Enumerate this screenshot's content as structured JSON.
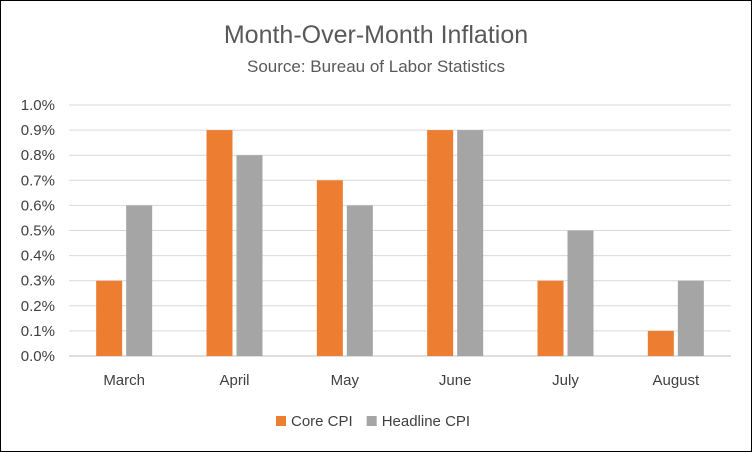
{
  "chart_data": {
    "type": "bar",
    "title": "Month-Over-Month Inflation",
    "subtitle": "Source: Bureau of Labor Statistics",
    "categories": [
      "March",
      "April",
      "May",
      "June",
      "July",
      "August"
    ],
    "series": [
      {
        "name": "Core CPI",
        "color": "#ED7D31",
        "values": [
          0.3,
          0.9,
          0.7,
          0.9,
          0.3,
          0.1
        ]
      },
      {
        "name": "Headline CPI",
        "color": "#A5A5A5",
        "values": [
          0.6,
          0.8,
          0.6,
          0.9,
          0.5,
          0.3
        ]
      }
    ],
    "yticks": [
      "0.0%",
      "0.1%",
      "0.2%",
      "0.3%",
      "0.4%",
      "0.5%",
      "0.6%",
      "0.7%",
      "0.8%",
      "0.9%",
      "1.0%"
    ],
    "ylim": [
      0,
      1.0
    ],
    "grid": true,
    "legend": "bottom"
  }
}
